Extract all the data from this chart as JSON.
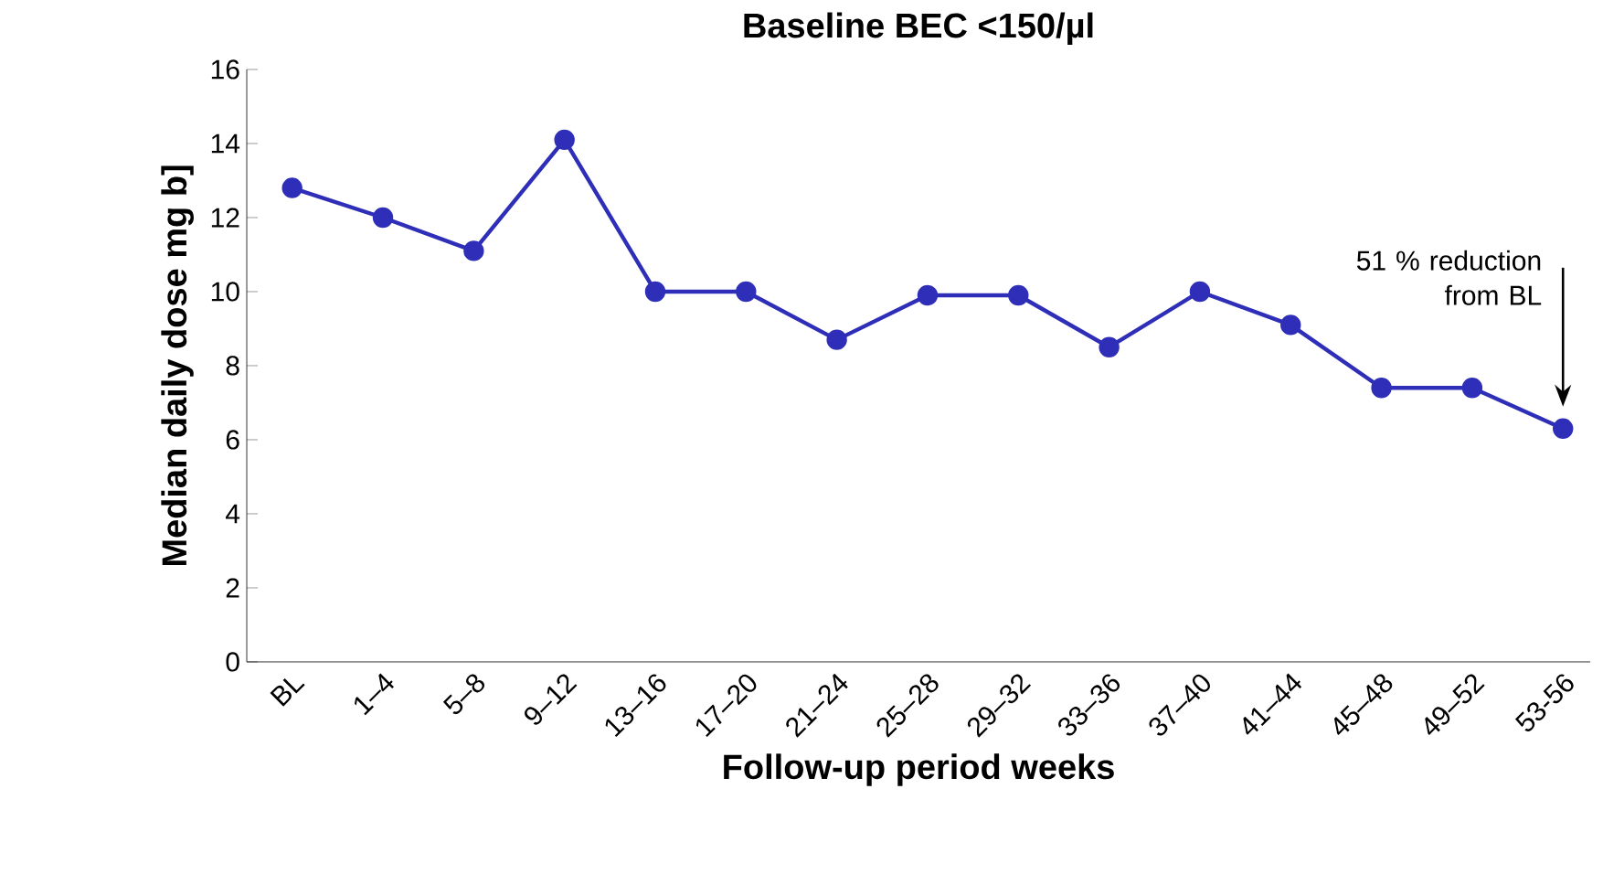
{
  "chart_data": {
    "type": "line",
    "title": "Baseline BEC <150/µl",
    "xlabel": "Follow-up period weeks",
    "ylabel": "Median daily dose mg  b]",
    "categories": [
      "BL",
      "1–4",
      "5–8",
      "9–12",
      "13–16",
      "17–20",
      "21–24",
      "25–28",
      "29–32",
      "33–36",
      "37–40",
      "41–44",
      "45–48",
      "49–52",
      "53-56"
    ],
    "series": [
      {
        "color": "#2e2eb8",
        "values": [
          12.8,
          12.0,
          11.1,
          14.1,
          10.0,
          10.0,
          8.7,
          9.9,
          9.9,
          8.5,
          10.0,
          9.1,
          7.4,
          7.4,
          6.3
        ]
      }
    ],
    "ylim": [
      0,
      16
    ],
    "yticks": [
      0,
      2,
      4,
      6,
      8,
      10,
      12,
      14,
      16
    ],
    "marker": "circle",
    "line_style": "solid",
    "grid": false,
    "annotations": [
      "51 % reduction from BL"
    ]
  }
}
